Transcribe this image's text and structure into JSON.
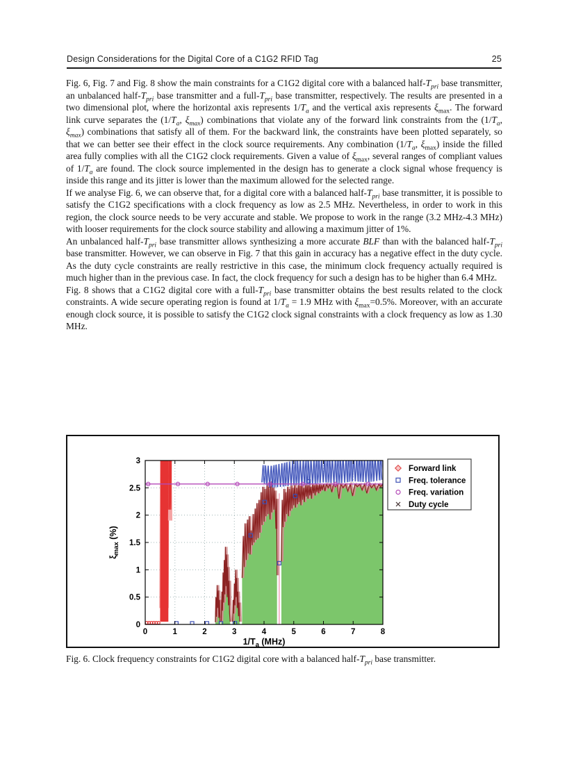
{
  "page": {
    "header": {
      "title": "Design Considerations for the Digital Core of a C1G2 RFID Tag",
      "page_number": "25"
    },
    "paragraphs": [
      "Fig. 6, Fig. 7 and Fig. 8 show the main constraints for a C1G2 digital core with a balanced half-<i>T</i><sub><i>pri</i></sub> base transmitter, an unbalanced half-<i>T</i><sub><i>pri</i></sub> base transmitter and a full-<i>T</i><sub><i>pri</i></sub> base transmitter, respectively. The results are presented in a two dimensional plot, where the horizontal axis represents 1/<i>T</i><sub><i>a</i></sub> and the vertical axis represents <i>&#958;</i><sub>max</sub>. The forward link curve separates the (1/<i>T</i><sub><i>a</i></sub>, <i>&#958;</i><sub><i>max</i></sub>) combinations that violate any of the forward link constraints from the (1/<i>T</i><sub><i>a</i></sub>, <i>&#958;</i><sub><i>max</i></sub>) combinations that satisfy all of them. For the backward link, the constraints have been plotted separately, so that we can better see their effect in the clock source requirements. Any combination (1/<i>T</i><sub><i>a</i></sub>, <i>&#958;</i><sub>max</sub>) inside the filled area fully complies with all the C1G2 clock requirements. Given a value of <i>&#958;</i><sub>max</sub>, several ranges of compliant values of 1/<i>T</i><sub><i>a</i></sub> are found. The clock source implemented in the design has to generate a clock signal whose frequency is inside this range and its jitter is lower than the maximum allowed for the selected range.",
      "If we analyse Fig. 6, we can observe that, for a digital core with a balanced half-<i>T</i><sub><i>pri</i></sub> base transmitter, it is possible to satisfy the C1G2 specifications with a clock frequency as low as 2.5 MHz. Nevertheless, in order to work in this region, the clock source needs to be very accurate and stable. We propose to work in the range (3.2 MHz-4.3 MHz) with looser requirements for the clock source stability and allowing a maximum jitter of 1%.",
      "An unbalanced half-<i>T</i><sub><i>pri</i></sub> base transmitter allows synthesizing a more accurate <i>BLF</i> than with the balanced half-<i>T</i><sub><i>pri</i></sub> base transmitter. However, we can observe in Fig. 7 that this gain in accuracy has a negative effect in the duty cycle. As the duty cycle constraints are really restrictive in this case, the minimum clock frequency actually required is much higher than in the previous case. In fact, the clock frequency for such a design has to be higher than 6.4 MHz.",
      "Fig. 8 shows that a C1G2 digital core with a full-<i>T</i><sub><i>pri</i></sub> base transmitter obtains the best results related to the clock constraints. A wide secure operating region is found at 1/<i>T</i><sub><i>a</i></sub> = 1.9 MHz with <i>&#958;</i><sub>max</sub>=0.5%. Moreover, with an accurate enough clock source, it is possible to satisfy the C1G2 clock signal constraints with a clock frequency as low as 1.30 MHz."
    ],
    "caption": "Fig. 6. Clock frequency constraints for C1G2 digital core with a balanced half-<i>T</i><sub><i>pri</i></sub> base transmitter."
  },
  "chart_data": {
    "type": "line",
    "title": "",
    "xlabel_parts": [
      "1/T",
      "a",
      " (MHz)"
    ],
    "ylabel_parts": [
      "ξ",
      "max",
      " (%)"
    ],
    "xlim": [
      0,
      8
    ],
    "ylim": [
      0,
      3
    ],
    "xticks": [
      0,
      1,
      2,
      3,
      4,
      5,
      6,
      7,
      8
    ],
    "yticks": [
      0,
      0.5,
      1,
      1.5,
      2,
      2.5,
      3
    ],
    "grid": true,
    "legend_position": "outside-top-right",
    "fill_color": "#7cc66b",
    "legend": [
      {
        "label": "Forward link",
        "marker": "diamond",
        "color": "#e04545"
      },
      {
        "label": "Freq. tolerance",
        "marker": "square",
        "color": "#3c50b5"
      },
      {
        "label": "Freq. variation",
        "marker": "circle",
        "color": "#b44ab8"
      },
      {
        "label": "Duty cycle",
        "marker": "x",
        "color": "#4a3838"
      }
    ],
    "series": {
      "forward_link": {
        "color": "#e63333",
        "light_color": "#f5a3a3",
        "zero_markers": [
          [
            0.05,
            0.03
          ],
          [
            0.13,
            0.03
          ],
          [
            0.21,
            0.03
          ],
          [
            0.29,
            0.03
          ],
          [
            0.37,
            0.03
          ],
          [
            0.45,
            0.03
          ]
        ],
        "band_main": {
          "env": [
            [
              0.52,
              0.05,
              3.1
            ],
            [
              0.78,
              0.05,
              3.1
            ]
          ],
          "step": 0.015
        },
        "band_inner": {
          "env": [
            [
              0.56,
              0.5,
              3.1
            ],
            [
              0.74,
              0.5,
              3.1
            ]
          ],
          "step": 0.019
        },
        "band_light": {
          "env": [
            [
              0.5,
              0.3,
              3.1
            ],
            [
              0.8,
              0.3,
              3.1
            ]
          ],
          "step": 0.022
        },
        "band_top": {
          "env": [
            [
              0.79,
              2.1,
              3.1
            ],
            [
              0.88,
              2.1,
              3.1
            ]
          ],
          "step": 0.018
        },
        "band_top_light": {
          "env": [
            [
              0.79,
              1.9,
              3.1
            ],
            [
              0.9,
              1.9,
              3.1
            ]
          ],
          "step": 0.025
        }
      },
      "freq_tolerance": {
        "color": "#3c50b5",
        "light_color": "#98a5e2",
        "squares": [
          [
            1.05,
            0.02
          ],
          [
            1.58,
            0.02
          ],
          [
            2.08,
            0.02
          ],
          [
            2.55,
            0.02
          ],
          [
            3.02,
            0.02
          ],
          [
            3.55,
            1.63
          ],
          [
            4.02,
            2.24
          ],
          [
            4.51,
            1.12
          ],
          [
            5.05,
            2.35
          ],
          [
            5.5,
            2.62
          ]
        ],
        "noise_env": [
          [
            3.92,
            2.6,
            2.92
          ],
          [
            4.2,
            2.5,
            2.9
          ],
          [
            4.6,
            2.52,
            2.95
          ],
          [
            5.0,
            2.55,
            3.0
          ],
          [
            5.5,
            2.55,
            3.02
          ],
          [
            6.0,
            2.6,
            3.05
          ],
          [
            6.5,
            2.58,
            3.05
          ],
          [
            7.0,
            2.62,
            3.08
          ],
          [
            7.5,
            2.6,
            3.05
          ],
          [
            8.0,
            2.65,
            3.08
          ]
        ],
        "noise_step": 0.045,
        "noise_light_step": 0.06
      },
      "freq_variation": {
        "color": "#b44ab8",
        "line_y": 2.57,
        "marker_x": [
          0.1,
          1.1,
          2.1,
          3.1,
          4.2,
          5.3,
          6.4,
          7.5
        ]
      },
      "duty_cycle": {
        "color": "#8b2222",
        "light_color": "#cf9090",
        "segments": [
          [
            [
              2.36,
              0.04
            ],
            [
              2.38,
              0.5
            ],
            [
              2.4,
              0.14
            ],
            [
              2.42,
              0.72
            ],
            [
              2.44,
              0.3
            ],
            [
              2.46,
              0.62
            ],
            [
              2.48,
              0.12
            ],
            [
              2.5,
              0.45
            ],
            [
              2.52,
              0.04
            ]
          ],
          [
            [
              2.56,
              0.06
            ],
            [
              2.58,
              0.6
            ],
            [
              2.6,
              0.25
            ],
            [
              2.62,
              0.95
            ],
            [
              2.64,
              0.4
            ],
            [
              2.66,
              1.18
            ],
            [
              2.68,
              0.55
            ],
            [
              2.7,
              1.42
            ],
            [
              2.72,
              0.7
            ],
            [
              2.74,
              1.28
            ],
            [
              2.76,
              0.5
            ],
            [
              2.78,
              1.05
            ],
            [
              2.8,
              0.35
            ],
            [
              2.82,
              0.8
            ],
            [
              2.84,
              0.2
            ],
            [
              2.86,
              0.05
            ]
          ],
          [
            [
              2.94,
              0.05
            ],
            [
              2.96,
              0.45
            ],
            [
              2.98,
              0.2
            ],
            [
              3.0,
              0.75
            ],
            [
              3.02,
              0.35
            ],
            [
              3.04,
              1.0
            ],
            [
              3.06,
              0.5
            ],
            [
              3.08,
              0.85
            ],
            [
              3.1,
              0.3
            ],
            [
              3.12,
              0.6
            ],
            [
              3.14,
              0.15
            ],
            [
              3.16,
              0.4
            ],
            [
              3.18,
              0.05
            ]
          ],
          [
            [
              3.26,
              0.85
            ],
            [
              3.3,
              1.62
            ],
            [
              3.33,
              1.05
            ],
            [
              3.36,
              1.85
            ],
            [
              3.4,
              1.18
            ],
            [
              3.44,
              1.92
            ],
            [
              3.47,
              1.3
            ],
            [
              3.5,
              1.98
            ],
            [
              3.53,
              1.28
            ],
            [
              3.56,
              1.72
            ],
            [
              3.6,
              1.45
            ],
            [
              3.63,
              2.02
            ],
            [
              3.66,
              1.5
            ],
            [
              3.7,
              2.12
            ],
            [
              3.73,
              1.55
            ],
            [
              3.76,
              2.22
            ],
            [
              3.8,
              1.58
            ],
            [
              3.83,
              2.28
            ],
            [
              3.86,
              1.68
            ],
            [
              3.9,
              2.42
            ],
            [
              3.93,
              1.82
            ],
            [
              3.96,
              2.52
            ],
            [
              4.0,
              1.88
            ],
            [
              4.03,
              2.48
            ],
            [
              4.06,
              1.98
            ],
            [
              4.1,
              2.58
            ],
            [
              4.13,
              2.02
            ],
            [
              4.16,
              2.52
            ],
            [
              4.2,
              1.92
            ],
            [
              4.23,
              2.62
            ],
            [
              4.26,
              2.05
            ],
            [
              4.3,
              2.52
            ],
            [
              4.33,
              2.1
            ],
            [
              4.36,
              2.45
            ],
            [
              4.4,
              1.75
            ],
            [
              4.42,
              2.3
            ],
            [
              4.44,
              0.9
            ]
          ],
          [
            [
              4.58,
              1.15
            ],
            [
              4.61,
              2.28
            ],
            [
              4.64,
              1.78
            ],
            [
              4.67,
              2.48
            ],
            [
              4.7,
              1.88
            ],
            [
              4.73,
              2.42
            ],
            [
              4.76,
              2.02
            ],
            [
              4.79,
              2.52
            ],
            [
              4.82,
              1.98
            ],
            [
              4.85,
              2.48
            ],
            [
              4.88,
              2.08
            ],
            [
              4.91,
              2.55
            ],
            [
              4.94,
              2.12
            ],
            [
              4.97,
              2.5
            ],
            [
              5.0,
              2.18
            ],
            [
              5.03,
              2.57
            ],
            [
              5.06,
              2.14
            ],
            [
              5.09,
              2.5
            ],
            [
              5.12,
              2.2
            ],
            [
              5.15,
              2.57
            ],
            [
              5.18,
              2.24
            ],
            [
              5.21,
              2.54
            ],
            [
              5.24,
              2.18
            ],
            [
              5.27,
              2.57
            ],
            [
              5.3,
              2.28
            ],
            [
              5.33,
              2.5
            ],
            [
              5.36,
              2.24
            ],
            [
              5.39,
              2.57
            ],
            [
              5.42,
              2.34
            ],
            [
              5.45,
              2.55
            ],
            [
              5.48,
              2.3
            ],
            [
              5.51,
              2.57
            ],
            [
              5.54,
              2.36
            ],
            [
              5.57,
              2.52
            ],
            [
              5.6,
              2.3
            ],
            [
              5.63,
              2.57
            ],
            [
              5.66,
              2.4
            ],
            [
              5.69,
              2.55
            ],
            [
              5.72,
              2.36
            ],
            [
              5.75,
              2.57
            ],
            [
              5.78,
              2.42
            ],
            [
              5.81,
              2.55
            ],
            [
              5.84,
              2.4
            ],
            [
              5.87,
              2.57
            ],
            [
              5.9,
              2.44
            ],
            [
              5.93,
              2.55
            ],
            [
              5.96,
              2.46
            ],
            [
              6.0,
              2.57
            ],
            [
              6.05,
              2.44
            ],
            [
              6.1,
              2.57
            ],
            [
              6.16,
              2.5
            ],
            [
              6.22,
              2.57
            ],
            [
              6.28,
              2.42
            ],
            [
              6.34,
              2.57
            ],
            [
              6.4,
              2.52
            ],
            [
              6.46,
              2.57
            ],
            [
              6.52,
              2.3
            ],
            [
              6.58,
              2.57
            ],
            [
              6.66,
              2.5
            ],
            [
              6.74,
              2.57
            ],
            [
              6.82,
              2.44
            ],
            [
              6.9,
              2.57
            ],
            [
              6.98,
              2.35
            ],
            [
              7.06,
              2.57
            ],
            [
              7.14,
              2.52
            ],
            [
              7.22,
              2.57
            ],
            [
              7.3,
              2.46
            ],
            [
              7.38,
              2.57
            ],
            [
              7.46,
              2.4
            ],
            [
              7.54,
              2.57
            ],
            [
              7.62,
              2.5
            ],
            [
              7.7,
              2.57
            ],
            [
              7.78,
              2.46
            ],
            [
              7.86,
              2.57
            ],
            [
              7.93,
              2.52
            ],
            [
              8.0,
              2.57
            ]
          ]
        ],
        "filled_segments": [
          3,
          4
        ]
      }
    },
    "gap_stripe": {
      "x0": 4.44,
      "x1": 4.58,
      "line_x": 4.51,
      "line_y1": 2.4,
      "line_color": "#f0a8bc"
    }
  }
}
